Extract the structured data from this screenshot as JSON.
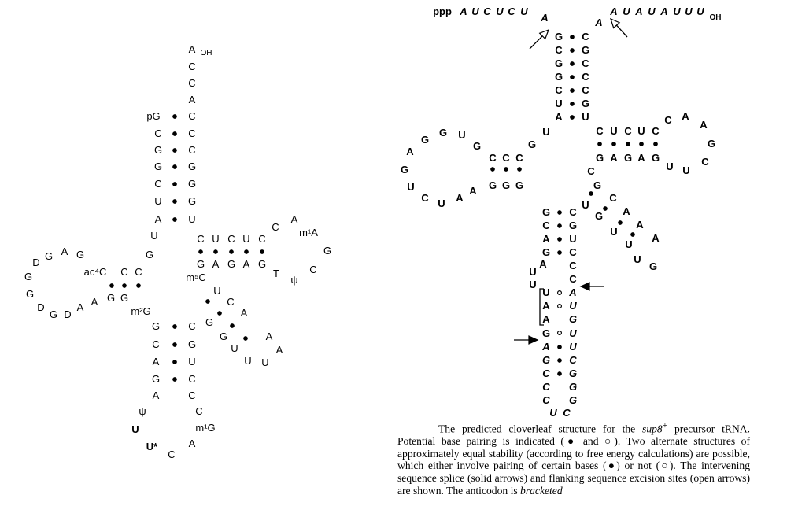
{
  "left_structure": {
    "stem": {
      "five_prime": [
        "pG",
        "C",
        "G",
        "G",
        "C",
        "U",
        "A"
      ],
      "three_prime": [
        "C",
        "C",
        "C",
        "G",
        "G",
        "G",
        "U"
      ],
      "tail": [
        "A",
        "C",
        "C",
        "A"
      ],
      "tail_end": "OH"
    },
    "junction_u": "U",
    "junction_g": "G",
    "d_stem_top": [
      "ac⁴C",
      "C",
      "C"
    ],
    "d_stem_bottom": [
      "G",
      "G",
      "m²G"
    ],
    "d_loop": [
      "G",
      "A",
      "G",
      "D",
      "G",
      "G",
      "D",
      "G",
      "D",
      "A",
      "A"
    ],
    "t_stem_top": [
      "C",
      "U",
      "C",
      "U",
      "C"
    ],
    "t_stem_bottom": [
      "G",
      "A",
      "G",
      "A",
      "G"
    ],
    "t_loop": [
      "C",
      "A",
      "m¹A",
      "G",
      "C",
      "ψ",
      "T"
    ],
    "variable": [
      "m⁵C",
      "U",
      "G",
      "C",
      "G",
      "A",
      "U",
      "U",
      "A",
      "A",
      "U",
      "G"
    ],
    "anticodon_stem_left": [
      "G",
      "C",
      "A",
      "G",
      "A"
    ],
    "anticodon_stem_right": [
      "C",
      "G",
      "U",
      "C",
      "C"
    ],
    "anticodon_loop": [
      "ψ",
      "U",
      "U*",
      "C",
      "A",
      "m¹G",
      "C"
    ]
  },
  "right_structure": {
    "leader": "ppp AUCUCU",
    "leader_a": "A",
    "trailer_a": "A",
    "trailer": "AUAUAUUU",
    "trailer_end": "OH",
    "stem_left": [
      "G",
      "C",
      "G",
      "G",
      "C",
      "U",
      "A"
    ],
    "stem_right": [
      "C",
      "G",
      "C",
      "C",
      "C",
      "G",
      "U"
    ],
    "u_junction": "U",
    "g_junction": "G",
    "d_loop": [
      "G",
      "U",
      "G",
      "G",
      "A",
      "G",
      "U",
      "C",
      "U",
      "A",
      "A"
    ],
    "d_stem_top": [
      "C",
      "C",
      "C"
    ],
    "d_stem_bottom": [
      "G",
      "G",
      "G"
    ],
    "t_stem_top": [
      "C",
      "U",
      "C",
      "U",
      "C"
    ],
    "t_stem_bottom": [
      "G",
      "A",
      "G",
      "A",
      "G"
    ],
    "t_loop": [
      "C",
      "A",
      "A",
      "G",
      "C",
      "U",
      "U"
    ],
    "variable": [
      "C",
      "G",
      "U",
      "C",
      "G",
      "A",
      "U",
      "A",
      "U",
      "A",
      "U",
      "G"
    ],
    "anticodon_stem_left": [
      "G",
      "C",
      "A",
      "G",
      "U",
      "A"
    ],
    "anticodon_stem_right": [
      "C",
      "G",
      "U",
      "C",
      "C",
      "C"
    ],
    "u_column": [
      "U",
      "U",
      "A",
      "A",
      "G"
    ],
    "intron_right": [
      "A",
      "U",
      "G",
      "U"
    ],
    "lower_left": [
      "A",
      "G",
      "C",
      "C"
    ],
    "lower_right": [
      "U",
      "C",
      "G",
      "G"
    ],
    "bottom": [
      "U",
      "C"
    ],
    "bracket_letters": [
      "U",
      "A",
      "A"
    ]
  },
  "caption": {
    "part1": "The predicted cloverleaf structure for the ",
    "gene": "sup8",
    "sup": "+",
    "part2": " precursor tRNA. Potential base pairing is indicated (● and ○). Two alternate structures of approximately equal stability (according to free energy calculations) are possible, which either involve pairing of certain bases (●) or not (○). The intervening sequence splice (solid arrows) and flanking sequence excision sites (open arrows) are shown. The anticodon is ",
    "part3": "bracketed"
  }
}
